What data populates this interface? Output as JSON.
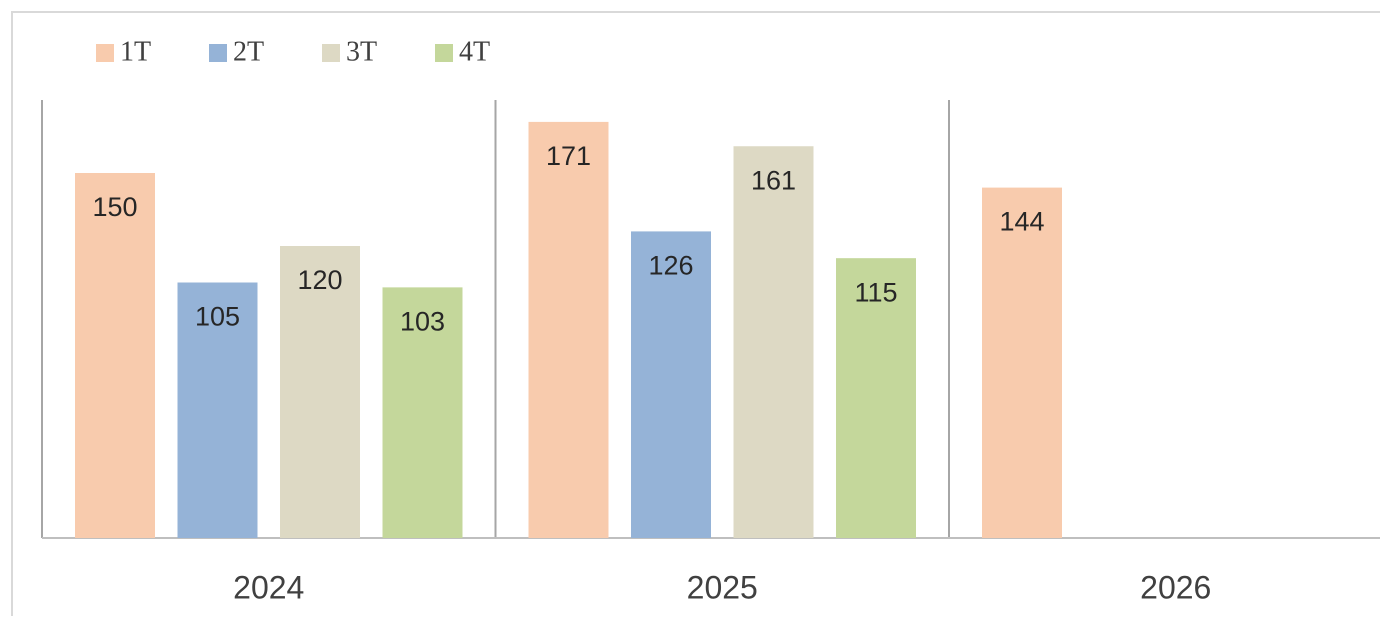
{
  "chart_data": {
    "type": "bar",
    "categories": [
      "2024",
      "2025",
      "2026"
    ],
    "series": [
      {
        "name": "1T",
        "color": "#f8cbad",
        "values": [
          150,
          171,
          144
        ]
      },
      {
        "name": "2T",
        "color": "#95b3d7",
        "values": [
          105,
          126,
          null
        ]
      },
      {
        "name": "3T",
        "color": "#ddd9c4",
        "values": [
          120,
          161,
          null
        ]
      },
      {
        "name": "4T",
        "color": "#c4d79b",
        "values": [
          103,
          115,
          null
        ]
      }
    ],
    "ylim": [
      0,
      180
    ]
  }
}
